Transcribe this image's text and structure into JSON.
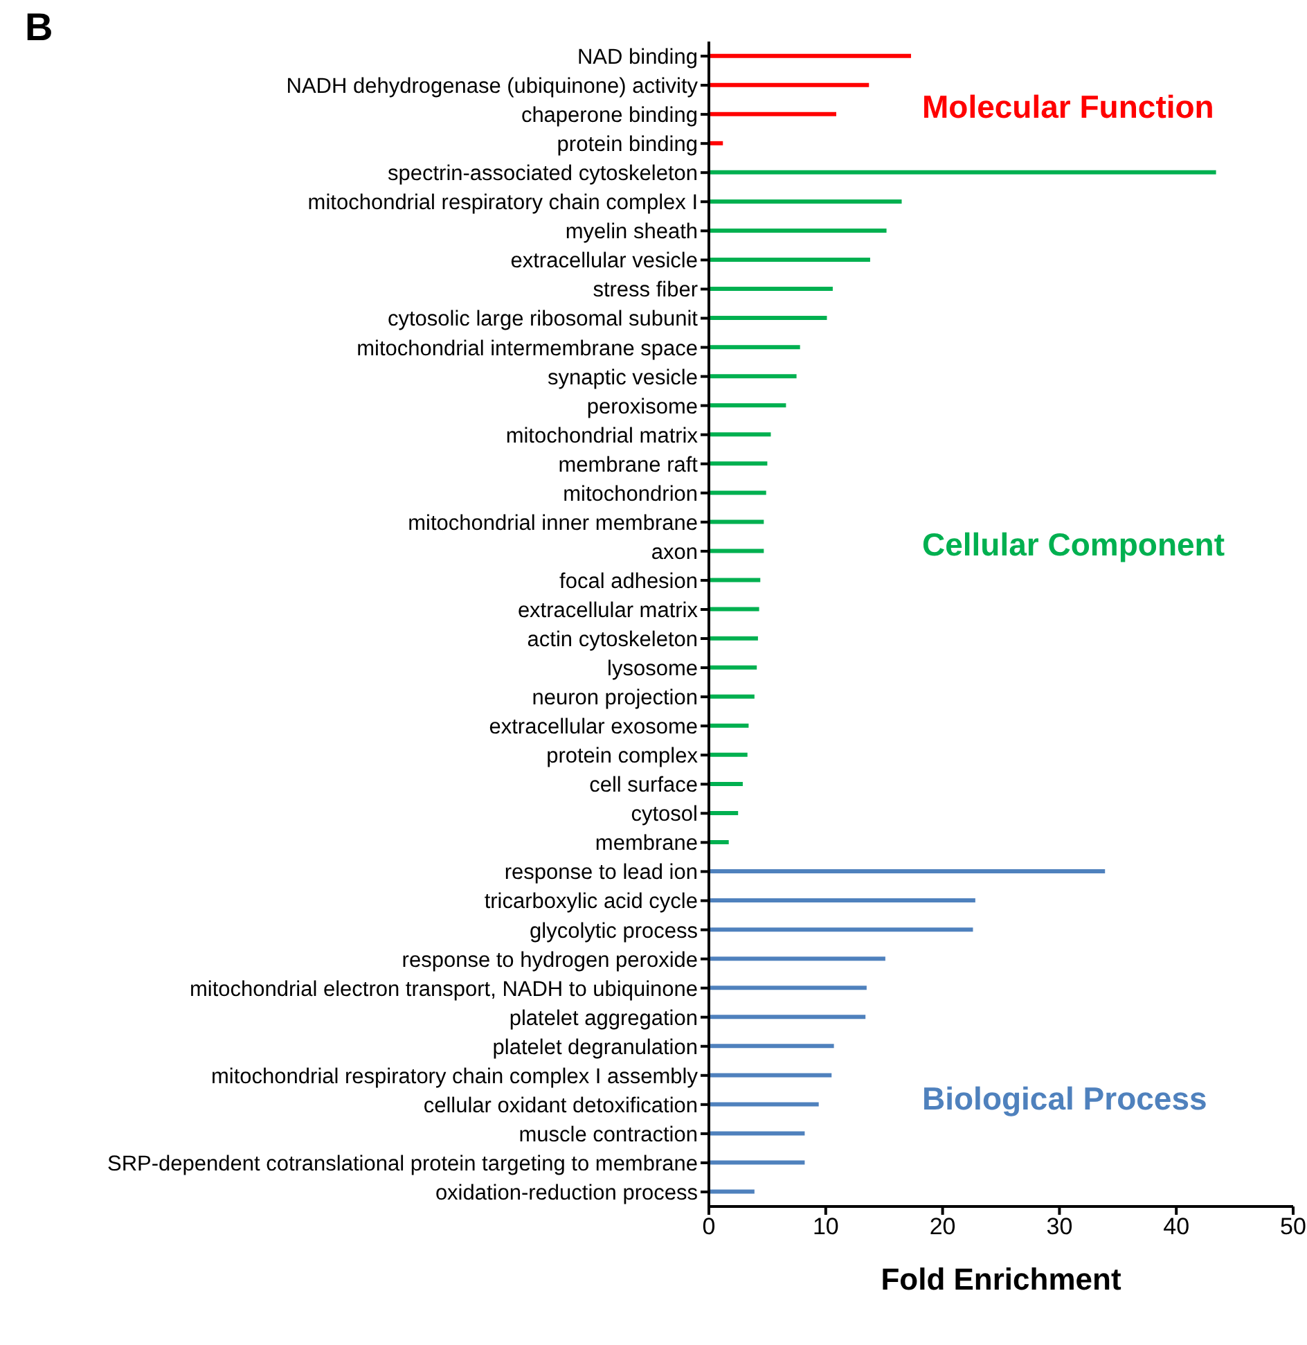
{
  "chart_data": {
    "type": "bar",
    "orientation": "horizontal",
    "xlabel": "Fold Enrichment",
    "categories": [
      "NAD binding",
      "NADH dehydrogenase (ubiquinone) activity",
      "chaperone binding",
      "protein binding",
      "spectrin-associated cytoskeleton",
      "mitochondrial respiratory chain complex I",
      "myelin sheath",
      "extracellular vesicle",
      "stress fiber",
      "cytosolic large ribosomal subunit",
      "mitochondrial intermembrane space",
      "synaptic vesicle",
      "peroxisome",
      "mitochondrial matrix",
      "membrane raft",
      "mitochondrion",
      "mitochondrial inner membrane",
      "axon",
      "focal adhesion",
      "extracellular matrix",
      "actin cytoskeleton",
      "lysosome",
      "neuron projection",
      "extracellular exosome",
      "protein complex",
      "cell surface",
      "cytosol",
      "membrane",
      "response to lead ion",
      "tricarboxylic acid cycle",
      "glycolytic process",
      "response to hydrogen peroxide",
      "mitochondrial electron transport, NADH to ubiquinone",
      "platelet aggregation",
      "platelet degranulation",
      "mitochondrial respiratory chain complex I assembly",
      "cellular oxidant detoxification",
      "muscle contraction",
      "SRP-dependent cotranslational protein targeting to membrane",
      "oxidation-reduction process"
    ],
    "values": [
      17.3,
      13.7,
      10.9,
      1.2,
      43.4,
      16.5,
      15.2,
      13.8,
      10.6,
      10.1,
      7.8,
      7.5,
      6.6,
      5.3,
      5.0,
      4.9,
      4.7,
      4.7,
      4.4,
      4.3,
      4.2,
      4.1,
      3.9,
      3.4,
      3.3,
      2.9,
      2.5,
      1.7,
      33.9,
      22.8,
      22.6,
      15.1,
      13.5,
      13.4,
      10.7,
      10.5,
      9.4,
      8.2,
      8.2,
      3.9
    ],
    "colors": [
      "#ff0000",
      "#ff0000",
      "#ff0000",
      "#ff0000",
      "#00b050",
      "#00b050",
      "#00b050",
      "#00b050",
      "#00b050",
      "#00b050",
      "#00b050",
      "#00b050",
      "#00b050",
      "#00b050",
      "#00b050",
      "#00b050",
      "#00b050",
      "#00b050",
      "#00b050",
      "#00b050",
      "#00b050",
      "#00b050",
      "#00b050",
      "#00b050",
      "#00b050",
      "#00b050",
      "#00b050",
      "#00b050",
      "#4f81bd",
      "#4f81bd",
      "#4f81bd",
      "#4f81bd",
      "#4f81bd",
      "#4f81bd",
      "#4f81bd",
      "#4f81bd",
      "#4f81bd",
      "#4f81bd",
      "#4f81bd",
      "#4f81bd"
    ],
    "xlim": [
      0,
      50
    ],
    "xticks": [
      0,
      10,
      20,
      30,
      40,
      50
    ],
    "grid": false,
    "legend": false,
    "annotations": [
      "B",
      "Molecular Function",
      "Cellular Component",
      "Biological Process"
    ]
  }
}
